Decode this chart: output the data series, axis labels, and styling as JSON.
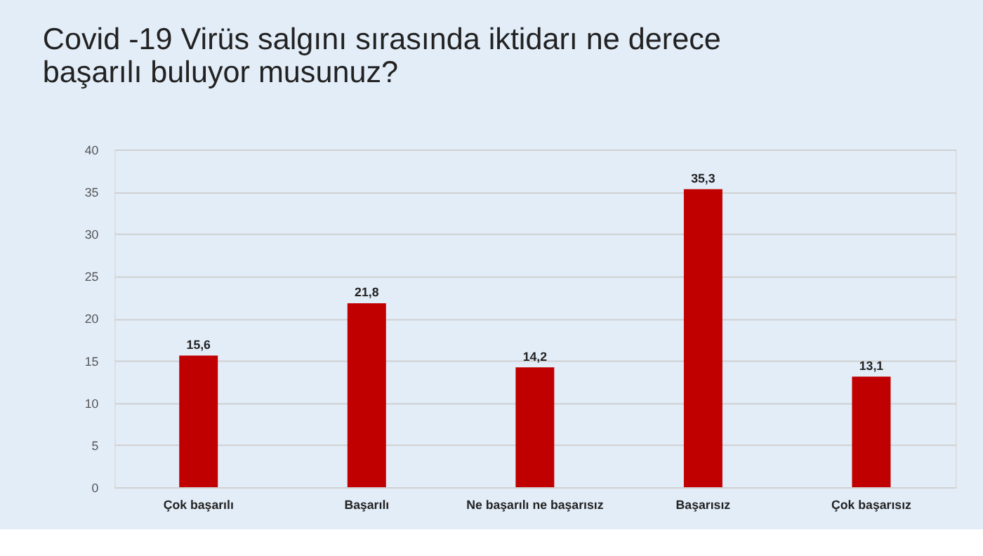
{
  "chart_data": {
    "type": "bar",
    "title": "Covid -19 Virüs salgını sırasında iktidarı ne derece\nbaşarılı buluyor musunuz?",
    "categories": [
      "Çok başarılı",
      "Başarılı",
      "Ne başarılı ne başarısız",
      "Başarısız",
      "Çok başarısız"
    ],
    "values": [
      15.6,
      21.8,
      14.2,
      35.3,
      13.1
    ],
    "color": "#c00000",
    "value_labels": [
      "15,6",
      "21,8",
      "14,2",
      "35,3",
      "13,1"
    ],
    "ylim": [
      0,
      40
    ],
    "yticks": [
      0,
      5,
      10,
      15,
      20,
      25,
      30,
      35,
      40
    ],
    "grid": "y"
  }
}
